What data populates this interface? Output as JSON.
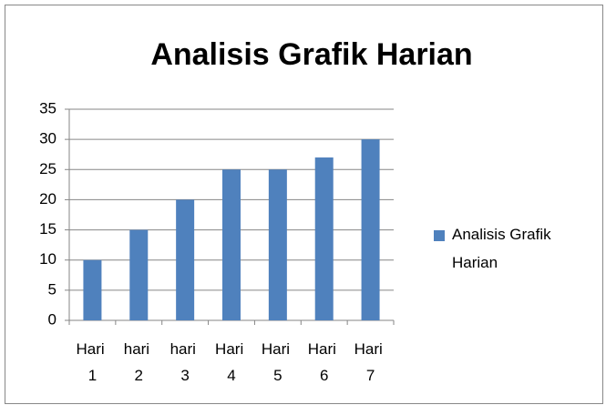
{
  "chart_data": {
    "type": "bar",
    "title": "Analisis Grafik Harian",
    "categories": [
      "Hari 1",
      "hari 2",
      "hari 3",
      "Hari 4",
      "Hari 5",
      "Hari 6",
      "Hari 7"
    ],
    "series": [
      {
        "name": "Analisis Grafik Harian",
        "color": "#4f81bd",
        "values": [
          10,
          15,
          20,
          25,
          25,
          27,
          30
        ]
      }
    ],
    "ylim": [
      0,
      35
    ],
    "yticks": [
      0,
      5,
      10,
      15,
      20,
      25,
      30,
      35
    ],
    "grid": true,
    "legend": "right"
  }
}
